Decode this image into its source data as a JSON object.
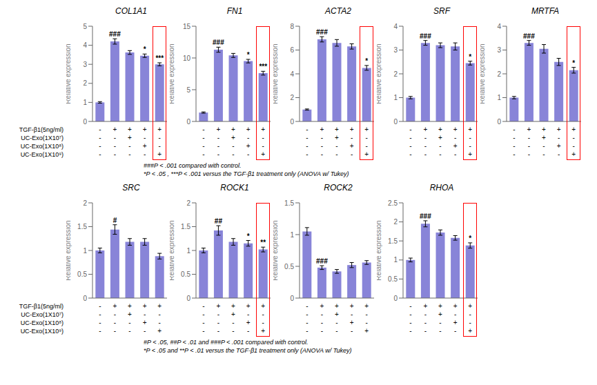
{
  "chart_data": [
    {
      "type": "bar",
      "title": "COL1A1",
      "y_label": "Relative expression",
      "categories": [
        null,
        null,
        null,
        null,
        null
      ],
      "values": [
        1.0,
        4.2,
        3.62,
        3.45,
        3.0
      ],
      "errors": [
        0.04,
        0.14,
        0.1,
        0.09,
        0.08
      ],
      "annotations": [
        null,
        "###",
        null,
        "*",
        "***"
      ],
      "ylim": [
        0,
        5
      ],
      "yticks": [
        0,
        1,
        2,
        3,
        4,
        5
      ],
      "color": "#8884d8",
      "highlight": {
        "color": "red"
      },
      "conditions": [
        [
          "-",
          "+",
          "+",
          "+",
          "+"
        ],
        [
          "-",
          "-",
          "+",
          "-",
          "-"
        ],
        [
          "-",
          "-",
          "-",
          "+",
          "-"
        ],
        [
          "-",
          "-",
          "-",
          "-",
          "+"
        ]
      ]
    },
    {
      "type": "bar",
      "title": "FN1",
      "y_label": "Relative expression",
      "categories": [
        null,
        null,
        null,
        null,
        null
      ],
      "values": [
        1.4,
        11.3,
        10.4,
        9.5,
        7.6
      ],
      "errors": [
        0.1,
        0.4,
        0.32,
        0.28,
        0.3
      ],
      "annotations": [
        null,
        "###",
        null,
        "*",
        "***"
      ],
      "ylim": [
        0,
        15
      ],
      "yticks": [
        0,
        5,
        10,
        15
      ],
      "color": "#8884d8",
      "highlight": {
        "color": "red"
      },
      "conditions": [
        [
          "-",
          "+",
          "+",
          "+",
          "+"
        ],
        [
          "-",
          "-",
          "+",
          "-",
          "-"
        ],
        [
          "-",
          "-",
          "-",
          "+",
          "-"
        ],
        [
          "-",
          "-",
          "-",
          "-",
          "+"
        ]
      ]
    },
    {
      "type": "bar",
      "title": "ACTA2",
      "y_label": "Relative expression",
      "categories": [
        null,
        null,
        null,
        null,
        null
      ],
      "values": [
        1.0,
        6.9,
        6.6,
        6.3,
        4.5
      ],
      "errors": [
        0.05,
        0.22,
        0.28,
        0.22,
        0.2
      ],
      "annotations": [
        null,
        "###",
        null,
        null,
        "*"
      ],
      "ylim": [
        0,
        8
      ],
      "yticks": [
        0,
        2,
        4,
        6,
        8
      ],
      "color": "#8884d8",
      "highlight": {
        "color": "red"
      },
      "conditions": [
        [
          "-",
          "+",
          "+",
          "+",
          "+"
        ],
        [
          "-",
          "-",
          "+",
          "-",
          "-"
        ],
        [
          "-",
          "-",
          "-",
          "+",
          "-"
        ],
        [
          "-",
          "-",
          "-",
          "-",
          "+"
        ]
      ]
    },
    {
      "type": "bar",
      "title": "SRF",
      "y_label": "Relative expression",
      "categories": [
        null,
        null,
        null,
        null,
        null
      ],
      "values": [
        1.0,
        3.3,
        3.2,
        3.15,
        2.45
      ],
      "errors": [
        0.05,
        0.1,
        0.1,
        0.15,
        0.08
      ],
      "annotations": [
        null,
        "###",
        null,
        null,
        "*"
      ],
      "ylim": [
        0,
        4
      ],
      "yticks": [
        0,
        1,
        2,
        3,
        4
      ],
      "color": "#8884d8",
      "highlight": {
        "color": "red"
      },
      "conditions": [
        [
          "-",
          "+",
          "+",
          "+",
          "+"
        ],
        [
          "-",
          "-",
          "+",
          "-",
          "-"
        ],
        [
          "-",
          "-",
          "-",
          "+",
          "-"
        ],
        [
          "-",
          "-",
          "-",
          "-",
          "+"
        ]
      ]
    },
    {
      "type": "bar",
      "title": "MRTFA",
      "y_label": "Relative expression",
      "categories": [
        null,
        null,
        null,
        null,
        null
      ],
      "values": [
        1.0,
        3.3,
        3.05,
        2.5,
        2.15
      ],
      "errors": [
        0.05,
        0.1,
        0.18,
        0.15,
        0.12
      ],
      "annotations": [
        null,
        "###",
        null,
        null,
        "*"
      ],
      "ylim": [
        0,
        4
      ],
      "yticks": [
        0,
        1,
        2,
        3,
        4
      ],
      "color": "#8884d8",
      "highlight": {
        "color": "red"
      },
      "conditions": [
        [
          "-",
          "+",
          "+",
          "+",
          "+"
        ],
        [
          "-",
          "-",
          "+",
          "-",
          "-"
        ],
        [
          "-",
          "-",
          "-",
          "+",
          "-"
        ],
        [
          "-",
          "-",
          "-",
          "-",
          "+"
        ]
      ]
    },
    {
      "type": "bar",
      "title": "SRC",
      "y_label": "Relative expression",
      "categories": [
        null,
        null,
        null,
        null,
        null
      ],
      "values": [
        1.0,
        1.44,
        1.18,
        1.18,
        0.88
      ],
      "errors": [
        0.05,
        0.1,
        0.07,
        0.07,
        0.06
      ],
      "annotations": [
        null,
        "#",
        null,
        null,
        null
      ],
      "ylim": [
        0,
        2.0
      ],
      "yticks": [
        0,
        0.5,
        1,
        1.5,
        2
      ],
      "color": "#8884d8",
      "conditions": [
        [
          "-",
          "+",
          "+",
          "+",
          "+"
        ],
        [
          "-",
          "-",
          "+",
          "-",
          "-"
        ],
        [
          "-",
          "-",
          "-",
          "+",
          "-"
        ],
        [
          "-",
          "-",
          "-",
          "-",
          "+"
        ]
      ]
    },
    {
      "type": "bar",
      "title": "ROCK1",
      "y_label": "Relative expression",
      "categories": [
        null,
        null,
        null,
        null,
        null
      ],
      "values": [
        1.0,
        1.42,
        1.18,
        1.15,
        1.02
      ],
      "errors": [
        0.05,
        0.1,
        0.07,
        0.06,
        0.05
      ],
      "annotations": [
        null,
        "##",
        null,
        "*",
        "**"
      ],
      "ylim": [
        0,
        2.0
      ],
      "yticks": [
        0,
        0.5,
        1,
        1.5,
        2
      ],
      "color": "#8884d8",
      "highlight": {
        "color": "red"
      },
      "conditions": [
        [
          "-",
          "+",
          "+",
          "+",
          "+"
        ],
        [
          "-",
          "-",
          "+",
          "-",
          "-"
        ],
        [
          "-",
          "-",
          "-",
          "+",
          "-"
        ],
        [
          "-",
          "-",
          "-",
          "-",
          "+"
        ]
      ]
    },
    {
      "type": "bar",
      "title": "ROCK2",
      "y_label": "Relative expression",
      "categories": [
        null,
        null,
        null,
        null,
        null
      ],
      "values": [
        1.05,
        0.48,
        0.42,
        0.52,
        0.56
      ],
      "errors": [
        0.06,
        0.03,
        0.03,
        0.04,
        0.03
      ],
      "annotations": [
        null,
        "###",
        null,
        null,
        null
      ],
      "ylim": [
        0,
        1.5
      ],
      "yticks": [
        0,
        0.5,
        1,
        1.5
      ],
      "color": "#8884d8",
      "conditions": [
        [
          "-",
          "+",
          "+",
          "+",
          "+"
        ],
        [
          "-",
          "-",
          "+",
          "-",
          "-"
        ],
        [
          "-",
          "-",
          "-",
          "+",
          "-"
        ],
        [
          "-",
          "-",
          "-",
          "-",
          "+"
        ]
      ]
    },
    {
      "type": "bar",
      "title": "RHOA",
      "y_label": "Relative expression",
      "categories": [
        null,
        null,
        null,
        null,
        null
      ],
      "values": [
        1.0,
        1.95,
        1.72,
        1.58,
        1.38
      ],
      "errors": [
        0.05,
        0.08,
        0.07,
        0.06,
        0.07
      ],
      "annotations": [
        null,
        "###",
        null,
        null,
        "*"
      ],
      "ylim": [
        0,
        2.5
      ],
      "yticks": [
        0,
        0.5,
        1,
        1.5,
        2,
        2.5
      ],
      "color": "#8884d8",
      "highlight": {
        "color": "red"
      },
      "conditions": [
        [
          "-",
          "+",
          "+",
          "+",
          "+"
        ],
        [
          "-",
          "-",
          "+",
          "-",
          "-"
        ],
        [
          "-",
          "-",
          "-",
          "+",
          "-"
        ],
        [
          "-",
          "-",
          "-",
          "-",
          "+"
        ]
      ]
    }
  ],
  "condition_labels": [
    "TGF-β1(5ng/ml)",
    "UC-Exo(1X10⁷)",
    "UC-Exo(1X10⁸)",
    "UC-Exo(1X10⁹)"
  ],
  "footnotes": [
    [
      "###P < .001 compared with control.",
      "*P < .05 , ***P < .001 versus the TGF-β1 treatment only (ANOVA w/ Tukey)"
    ],
    [
      "#P < .05, ##P < .01 and ###P < .001 compared with control.",
      "*P < .05 and **P < .01 versus the TGF-β1 treatment only (ANOVA w/ Tukey)"
    ]
  ]
}
